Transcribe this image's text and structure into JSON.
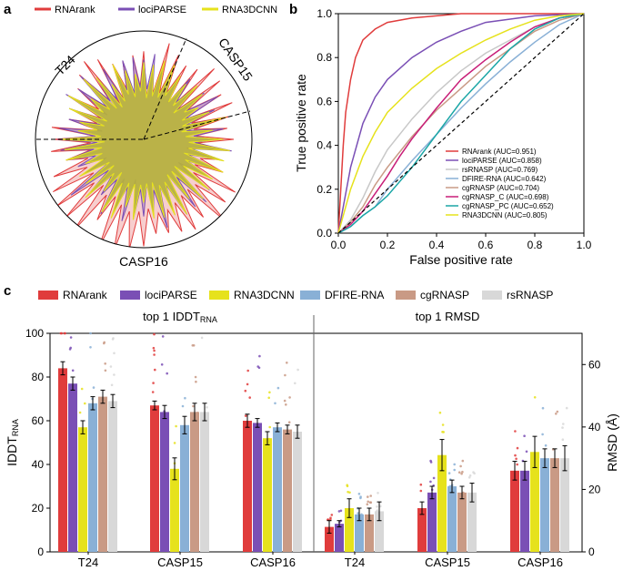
{
  "panels": {
    "a": "a",
    "b": "b",
    "c": "c"
  },
  "colors": {
    "rnarank": "#e03c3c",
    "locparse": "#7a4fb5",
    "rna3dcnn": "#e6e21c",
    "dfire": "#89b0d6",
    "cgrnasp": "#c99a85",
    "rsrnasp": "#d8d8d8",
    "cgrnasp_c": "#c81e78",
    "cgrnasp_pc": "#1aa6a6"
  },
  "chart_data": [
    {
      "type": "radar",
      "panel": "a",
      "legend": [
        "RNArank",
        "lociPARSE",
        "RNA3DCNN"
      ],
      "legend_placement": "top",
      "sector_labels": [
        "T24",
        "CASP15",
        "CASP16"
      ],
      "series": [
        {
          "name": "RNArank",
          "color": "#e03c3c"
        },
        {
          "name": "lociPARSE",
          "color": "#7a4fb5"
        },
        {
          "name": "RNA3DCNN",
          "color": "#e6e21c"
        }
      ]
    },
    {
      "type": "line",
      "panel": "b",
      "xlabel": "False positive rate",
      "ylabel": "True positive rate",
      "xlim": [
        0,
        1
      ],
      "ylim": [
        0,
        1
      ],
      "xticks": [
        "0.0",
        "0.2",
        "0.4",
        "0.6",
        "0.8",
        "1.0"
      ],
      "yticks": [
        "0.0",
        "0.2",
        "0.4",
        "0.6",
        "0.8",
        "1.0"
      ],
      "legend_placement": "bottom-right",
      "series": [
        {
          "name": "RNArank (AUC=0.951)",
          "color": "#e03c3c",
          "x": [
            0,
            0.01,
            0.02,
            0.03,
            0.05,
            0.07,
            0.1,
            0.15,
            0.2,
            0.3,
            0.5,
            0.7,
            1.0
          ],
          "y": [
            0,
            0.2,
            0.4,
            0.55,
            0.7,
            0.8,
            0.88,
            0.93,
            0.96,
            0.98,
            1.0,
            1.0,
            1.0
          ]
        },
        {
          "name": "lociPARSE (AUC=0.858)",
          "color": "#7a4fb5",
          "x": [
            0,
            0.02,
            0.05,
            0.1,
            0.15,
            0.2,
            0.3,
            0.4,
            0.5,
            0.6,
            0.8,
            1.0
          ],
          "y": [
            0,
            0.12,
            0.3,
            0.5,
            0.62,
            0.7,
            0.8,
            0.87,
            0.92,
            0.96,
            0.99,
            1.0
          ]
        },
        {
          "name": "rsRNASP (AUC=0.769)",
          "color": "#c8c8c8",
          "x": [
            0,
            0.05,
            0.1,
            0.15,
            0.2,
            0.3,
            0.4,
            0.5,
            0.6,
            0.7,
            0.8,
            0.9,
            1.0
          ],
          "y": [
            0,
            0.06,
            0.16,
            0.28,
            0.38,
            0.52,
            0.64,
            0.74,
            0.82,
            0.88,
            0.94,
            0.98,
            1.0
          ]
        },
        {
          "name": "DFIRE-RNA (AUC=0.642)",
          "color": "#89b0d6",
          "x": [
            0,
            0.05,
            0.1,
            0.15,
            0.2,
            0.3,
            0.4,
            0.5,
            0.6,
            0.7,
            0.8,
            0.9,
            1.0
          ],
          "y": [
            0,
            0.03,
            0.08,
            0.12,
            0.2,
            0.33,
            0.45,
            0.57,
            0.68,
            0.78,
            0.87,
            0.95,
            1.0
          ]
        },
        {
          "name": "cgRNASP (AUC=0.704)",
          "color": "#c99a85",
          "x": [
            0,
            0.05,
            0.1,
            0.15,
            0.2,
            0.3,
            0.4,
            0.5,
            0.6,
            0.7,
            0.8,
            0.9,
            1.0
          ],
          "y": [
            0,
            0.05,
            0.12,
            0.22,
            0.3,
            0.44,
            0.56,
            0.66,
            0.76,
            0.84,
            0.92,
            0.97,
            1.0
          ]
        },
        {
          "name": "cgRNASP_C (AUC=0.698)",
          "color": "#c81e78",
          "x": [
            0,
            0.05,
            0.1,
            0.15,
            0.2,
            0.25,
            0.3,
            0.4,
            0.5,
            0.6,
            0.7,
            0.8,
            0.9,
            1.0
          ],
          "y": [
            0,
            0.04,
            0.1,
            0.18,
            0.26,
            0.35,
            0.43,
            0.57,
            0.7,
            0.79,
            0.87,
            0.94,
            0.98,
            1.0
          ]
        },
        {
          "name": "cgRNASP_PC (AUC=0.652)",
          "color": "#1aa6a6",
          "x": [
            0,
            0.05,
            0.1,
            0.15,
            0.2,
            0.3,
            0.4,
            0.5,
            0.6,
            0.7,
            0.8,
            0.9,
            1.0
          ],
          "y": [
            0,
            0.03,
            0.08,
            0.12,
            0.17,
            0.3,
            0.45,
            0.6,
            0.72,
            0.84,
            0.93,
            0.98,
            1.0
          ]
        },
        {
          "name": "RNA3DCNN (AUC=0.805)",
          "color": "#e6e21c",
          "x": [
            0,
            0.02,
            0.05,
            0.1,
            0.15,
            0.2,
            0.3,
            0.4,
            0.5,
            0.6,
            0.7,
            0.8,
            0.9,
            1.0
          ],
          "y": [
            0,
            0.08,
            0.2,
            0.35,
            0.46,
            0.55,
            0.66,
            0.75,
            0.82,
            0.88,
            0.93,
            0.97,
            0.99,
            1.0
          ]
        },
        {
          "name": "",
          "color": "#000000",
          "dashed": true,
          "x": [
            0,
            1
          ],
          "y": [
            0,
            1
          ]
        }
      ]
    },
    {
      "type": "bar",
      "panel": "c",
      "legend": [
        "RNArank",
        "lociPARSE",
        "RNA3DCNN",
        "DFIRE-RNA",
        "cgRNASP",
        "rsRNASP"
      ],
      "legend_placement": "top",
      "groups": [
        {
          "title": "top 1 IDDT",
          "title_sub": "RNA",
          "ylabel": "IDDT",
          "ylabel_sub": "RNA",
          "axis": "left",
          "ylim": [
            0,
            100
          ],
          "yticks": [
            "0",
            "20",
            "40",
            "60",
            "80",
            "100"
          ],
          "categories": [
            "T24",
            "CASP15",
            "CASP16"
          ],
          "series": [
            {
              "name": "RNArank",
              "values": [
                84,
                67,
                60
              ],
              "errors": [
                3,
                2,
                3
              ]
            },
            {
              "name": "lociPARSE",
              "values": [
                77,
                64,
                59
              ],
              "errors": [
                3,
                3,
                2
              ]
            },
            {
              "name": "RNA3DCNN",
              "values": [
                57,
                38,
                52
              ],
              "errors": [
                3,
                5,
                3
              ]
            },
            {
              "name": "DFIRE-RNA",
              "values": [
                68,
                58,
                57
              ],
              "errors": [
                3,
                4,
                2
              ]
            },
            {
              "name": "cgRNASP",
              "values": [
                71,
                64,
                56
              ],
              "errors": [
                3,
                4,
                2
              ]
            },
            {
              "name": "rsRNASP",
              "values": [
                69,
                64,
                55
              ],
              "errors": [
                3,
                4,
                3
              ]
            }
          ]
        },
        {
          "title": "top 1 RMSD",
          "ylabel": "RMSD (Å)",
          "axis": "right",
          "ylim": [
            0,
            70
          ],
          "yticks": [
            "0",
            "20",
            "40",
            "60"
          ],
          "categories": [
            "T24",
            "CASP15",
            "CASP16"
          ],
          "series": [
            {
              "name": "RNArank",
              "values": [
                8,
                14,
                26
              ],
              "errors": [
                2,
                2,
                3
              ]
            },
            {
              "name": "lociPARSE",
              "values": [
                9,
                19,
                26
              ],
              "errors": [
                1,
                2,
                3
              ]
            },
            {
              "name": "RNA3DCNN",
              "values": [
                14,
                31,
                32
              ],
              "errors": [
                3,
                5,
                5
              ]
            },
            {
              "name": "DFIRE-RNA",
              "values": [
                12,
                21,
                30
              ],
              "errors": [
                2,
                2,
                3
              ]
            },
            {
              "name": "cgRNASP",
              "values": [
                12,
                19,
                30
              ],
              "errors": [
                2,
                2,
                3
              ]
            },
            {
              "name": "rsRNASP",
              "values": [
                13,
                19,
                30
              ],
              "errors": [
                3,
                3,
                4
              ]
            }
          ]
        }
      ]
    }
  ]
}
